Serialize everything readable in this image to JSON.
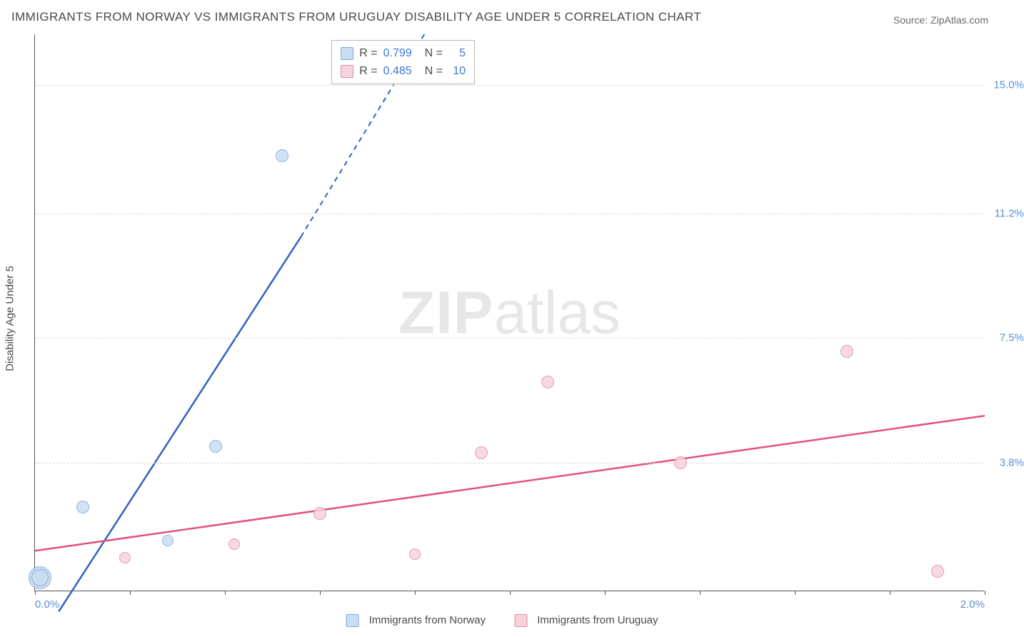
{
  "title": "IMMIGRANTS FROM NORWAY VS IMMIGRANTS FROM URUGUAY DISABILITY AGE UNDER 5 CORRELATION CHART",
  "source": "Source: ZipAtlas.com",
  "y_axis_label": "Disability Age Under 5",
  "watermark": {
    "bold": "ZIP",
    "rest": "atlas"
  },
  "chart": {
    "type": "scatter-correlation",
    "background_color": "#ffffff",
    "grid_color": "#d8d8d8",
    "axis_color": "#555555",
    "tick_label_color": "#5b8fd6",
    "xlim": [
      0.0,
      2.0
    ],
    "ylim": [
      0.0,
      16.5
    ],
    "y_ticks": [
      3.8,
      7.5,
      11.2,
      15.0
    ],
    "y_tick_labels": [
      "3.8%",
      "7.5%",
      "11.2%",
      "15.0%"
    ],
    "x_tick_positions": [
      0.0,
      0.2,
      0.4,
      0.6,
      0.8,
      1.0,
      1.2,
      1.4,
      1.6,
      1.8,
      2.0
    ],
    "x_tick_labels": {
      "0.0": "0.0%",
      "2.0": "2.0%"
    }
  },
  "series": {
    "norway": {
      "label": "Immigrants from Norway",
      "fill": "#c9ddf3",
      "stroke": "#7da9d9",
      "line_color": "#2f63c0",
      "points": [
        {
          "x": 0.01,
          "y": 0.4,
          "r": 16
        },
        {
          "x": 0.01,
          "y": 0.4,
          "r": 12
        },
        {
          "x": 0.1,
          "y": 2.5,
          "r": 9
        },
        {
          "x": 0.28,
          "y": 1.5,
          "r": 8
        },
        {
          "x": 0.38,
          "y": 4.3,
          "r": 9
        },
        {
          "x": 0.52,
          "y": 12.9,
          "r": 9
        }
      ],
      "trend": {
        "x1": 0.05,
        "y1": -0.6,
        "x2": 0.56,
        "y2": 10.5,
        "dash_from_x": 0.56,
        "x3": 0.82,
        "y3": 16.5
      }
    },
    "uruguay": {
      "label": "Immigrants from Uruguay",
      "fill": "#f6d3dd",
      "stroke": "#e28aa4",
      "line_color": "#e3517b",
      "points": [
        {
          "x": 0.01,
          "y": 0.4,
          "r": 14
        },
        {
          "x": 0.19,
          "y": 1.0,
          "r": 8
        },
        {
          "x": 0.42,
          "y": 1.4,
          "r": 8
        },
        {
          "x": 0.6,
          "y": 2.3,
          "r": 9
        },
        {
          "x": 0.8,
          "y": 1.1,
          "r": 8
        },
        {
          "x": 0.94,
          "y": 4.1,
          "r": 9
        },
        {
          "x": 1.08,
          "y": 6.2,
          "r": 9
        },
        {
          "x": 1.36,
          "y": 3.8,
          "r": 9
        },
        {
          "x": 1.71,
          "y": 7.1,
          "r": 9
        },
        {
          "x": 1.9,
          "y": 0.6,
          "r": 9
        }
      ],
      "trend": {
        "x1": 0.0,
        "y1": 1.2,
        "x2": 2.0,
        "y2": 5.2
      }
    }
  },
  "stats_box": {
    "rows": [
      {
        "series": "norway",
        "R_label": "R =",
        "R": "0.799",
        "N_label": "N =",
        "N": "5"
      },
      {
        "series": "uruguay",
        "R_label": "R =",
        "R": "0.485",
        "N_label": "N =",
        "N": "10"
      }
    ]
  },
  "legend": [
    {
      "series": "norway"
    },
    {
      "series": "uruguay"
    }
  ]
}
